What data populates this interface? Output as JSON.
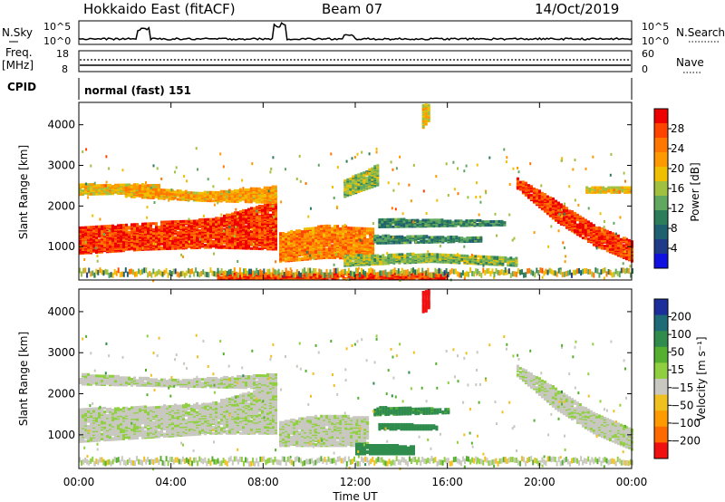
{
  "header": {
    "station": "Hokkaido East (fitACF)",
    "beam": "Beam 07",
    "date": "14/Oct/2019"
  },
  "noise_panel": {
    "left_label": "N.Sky",
    "right_label": "N.Search",
    "left_ticks": [
      "10^5",
      "10^0"
    ],
    "right_ticks": [
      "10^5",
      "10^0"
    ]
  },
  "freq_panel": {
    "label": "Freq.",
    "unit": "[MHz]",
    "left_ticks": [
      "18",
      "8"
    ],
    "right_ticks": [
      "60",
      "0"
    ],
    "right_label": "Nave"
  },
  "cpid_panel": {
    "label": "CPID",
    "mode": "normal (fast) 151"
  },
  "axes": {
    "x_label": "Time UT",
    "x_ticks": [
      "00:00",
      "04:00",
      "08:00",
      "12:00",
      "16:00",
      "20:00",
      "00:00"
    ],
    "y_label": "Slant Range [km]",
    "y_ticks": [
      "1000",
      "2000",
      "3000",
      "4000"
    ]
  },
  "colorbars": {
    "power": {
      "label": "Power [dB]",
      "ticks": [
        "28",
        "24",
        "20",
        "16",
        "12",
        "8",
        "4"
      ],
      "colors": [
        "#ee0000",
        "#ff4400",
        "#ff7700",
        "#ff9900",
        "#f0c000",
        "#a0c040",
        "#60a860",
        "#2e7d5a",
        "#1f6070",
        "#203a8a",
        "#1010e0"
      ]
    },
    "velocity": {
      "label": "Velocity [m s⁻¹]",
      "ticks": [
        "200",
        "100",
        "50",
        "15",
        "−15",
        "−50",
        "−100",
        "−200"
      ],
      "colors": [
        "#1c2e9c",
        "#1e6a76",
        "#2f8c4c",
        "#55b030",
        "#90d040",
        "#c8c8c0",
        "#f0c020",
        "#ff9a00",
        "#ff6a00",
        "#f01010"
      ]
    }
  },
  "chart_data": [
    {
      "type": "heatmap",
      "name": "power",
      "x_range_hours": [
        0,
        24
      ],
      "y_range_km": [
        180,
        4550
      ],
      "units": "dB",
      "bands": [
        {
          "t0": 0.0,
          "t1": 8.6,
          "lo": [
            800,
            900,
            950,
            900
          ],
          "hi": [
            1450,
            1550,
            1650,
            2100
          ],
          "power": 28
        },
        {
          "t0": 0.0,
          "t1": 3.5,
          "lo": [
            2250,
            2300
          ],
          "hi": [
            2500,
            2500
          ],
          "power": 20
        },
        {
          "t0": 2.0,
          "t1": 8.5,
          "lo": [
            2200,
            2100,
            2050
          ],
          "hi": [
            2450,
            2300,
            2450
          ],
          "power": 22
        },
        {
          "t0": 8.7,
          "t1": 12.8,
          "lo": [
            600,
            700,
            650
          ],
          "hi": [
            1300,
            1500,
            1400
          ],
          "power": 24
        },
        {
          "t0": 12.8,
          "t1": 17.5,
          "lo": [
            1050,
            1100
          ],
          "hi": [
            1250,
            1200
          ],
          "power": 12
        },
        {
          "t0": 13.0,
          "t1": 18.5,
          "lo": [
            1450,
            1500
          ],
          "hi": [
            1650,
            1600
          ],
          "power": 12
        },
        {
          "t0": 11.5,
          "t1": 19.0,
          "lo": [
            500,
            600,
            500
          ],
          "hi": [
            750,
            800,
            700
          ],
          "power": 16
        },
        {
          "t0": 19.0,
          "t1": 24.0,
          "lo": [
            2400,
            1600,
            1000,
            600
          ],
          "hi": [
            2650,
            2100,
            1500,
            1100
          ],
          "power": 28
        },
        {
          "t0": 6.0,
          "t1": 16.0,
          "lo": [
            180,
            180
          ],
          "hi": [
            330,
            330
          ],
          "power": 28
        },
        {
          "t0": 22.0,
          "t1": 24.0,
          "lo": [
            2300,
            2300
          ],
          "hi": [
            2450,
            2450
          ],
          "power": 20
        },
        {
          "t0": 11.5,
          "t1": 13.0,
          "lo": [
            2200,
            2500
          ],
          "hi": [
            2600,
            3000
          ],
          "power": 16
        },
        {
          "t0": 14.9,
          "t1": 15.2,
          "lo": [
            3900,
            4100
          ],
          "hi": [
            4450,
            4500
          ],
          "power": 20
        }
      ]
    },
    {
      "type": "heatmap",
      "name": "velocity",
      "x_range_hours": [
        0,
        24
      ],
      "y_range_km": [
        180,
        4550
      ],
      "units": "m s-1",
      "bands": [
        {
          "t0": 0.0,
          "t1": 8.6,
          "lo": [
            800,
            900,
            1000,
            1000
          ],
          "hi": [
            1600,
            1650,
            1750,
            2200
          ],
          "velocity": 0
        },
        {
          "t0": 0.0,
          "t1": 8.5,
          "lo": [
            2200,
            2150,
            2100
          ],
          "hi": [
            2450,
            2300,
            2450
          ],
          "velocity": 0
        },
        {
          "t0": 8.7,
          "t1": 12.5,
          "lo": [
            700,
            700,
            700
          ],
          "hi": [
            1300,
            1450,
            1400
          ],
          "velocity": 0
        },
        {
          "t0": 12.8,
          "t1": 16.0,
          "lo": [
            1450,
            1500
          ],
          "hi": [
            1650,
            1600
          ],
          "velocity": 40
        },
        {
          "t0": 13.0,
          "t1": 15.5,
          "lo": [
            1100,
            1100
          ],
          "hi": [
            1250,
            1200
          ],
          "velocity": 60
        },
        {
          "t0": 19.0,
          "t1": 24.0,
          "lo": [
            2400,
            1600,
            1000,
            600
          ],
          "hi": [
            2650,
            2100,
            1500,
            1100
          ],
          "velocity": 0
        },
        {
          "t0": 12.0,
          "t1": 14.5,
          "lo": [
            500,
            500
          ],
          "hi": [
            750,
            700
          ],
          "velocity": 60
        },
        {
          "t0": 14.9,
          "t1": 15.2,
          "lo": [
            3900,
            4100
          ],
          "hi": [
            4450,
            4500
          ],
          "velocity": -200
        }
      ]
    }
  ]
}
